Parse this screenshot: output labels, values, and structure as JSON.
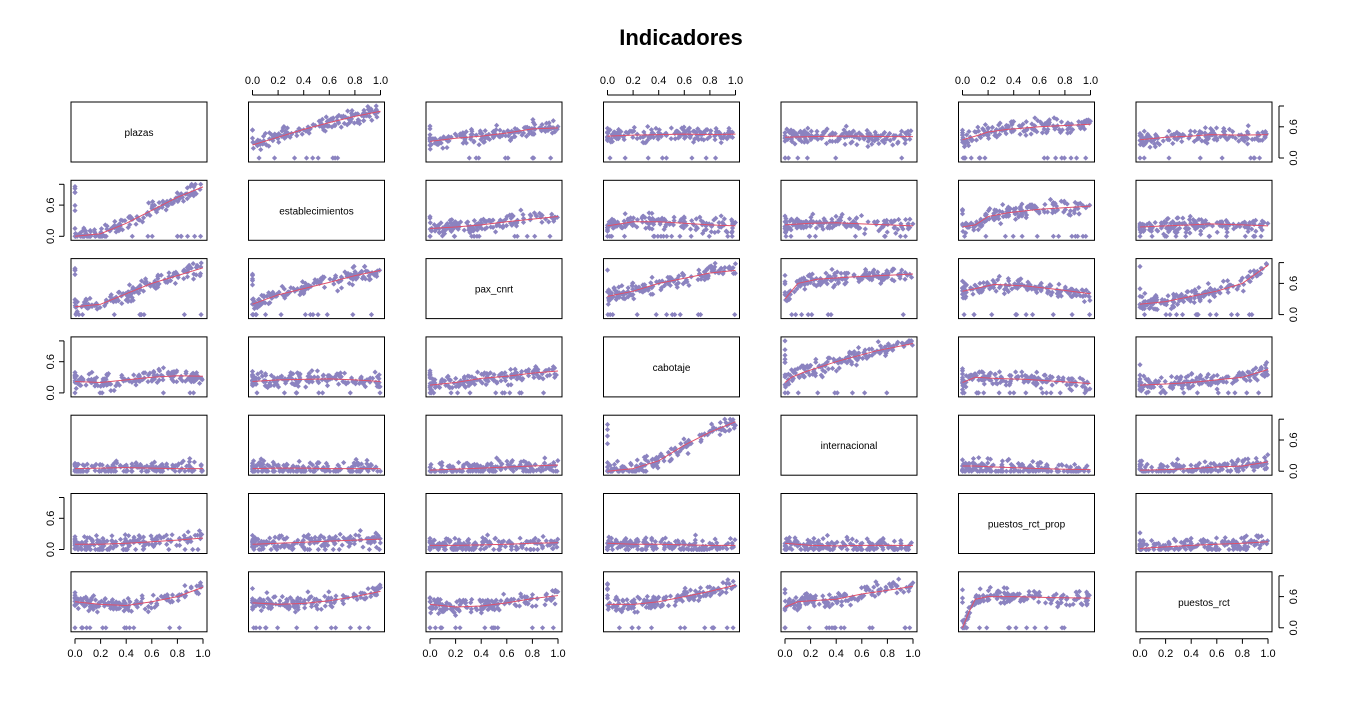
{
  "chart_data": {
    "type": "scatter",
    "subtype": "pairs-matrix",
    "title": "Indicadores",
    "variables": [
      "plazas",
      "establecimientos",
      "pax_cnrt",
      "cabotaje",
      "internacional",
      "puestos_rct_prop",
      "puestos_rct"
    ],
    "xlim": [
      0,
      1
    ],
    "ylim": [
      0,
      1
    ],
    "x_ticks": [
      "0.0",
      "0.2",
      "0.4",
      "0.6",
      "0.8",
      "1.0"
    ],
    "y_ticks": [
      "0.0",
      "0.6"
    ],
    "point_color": "#8B83C0",
    "smooth_color": "#E0506A",
    "top_axis_columns": [
      1,
      3,
      5
    ],
    "bottom_axis_columns": [
      0,
      2,
      4,
      6
    ],
    "left_axis_rows": [
      1,
      3,
      5
    ],
    "right_axis_rows": [
      0,
      2,
      4,
      6
    ],
    "smooth_lines": {
      "0-1": [
        [
          0,
          0.25
        ],
        [
          0.2,
          0.4
        ],
        [
          0.4,
          0.55
        ],
        [
          0.6,
          0.68
        ],
        [
          0.8,
          0.8
        ],
        [
          1,
          0.9
        ]
      ],
      "0-2": [
        [
          0,
          0.32
        ],
        [
          0.2,
          0.38
        ],
        [
          0.4,
          0.42
        ],
        [
          0.6,
          0.48
        ],
        [
          0.8,
          0.56
        ],
        [
          1,
          0.58
        ]
      ],
      "0-3": [
        [
          0,
          0.42
        ],
        [
          0.2,
          0.44
        ],
        [
          0.4,
          0.45
        ],
        [
          0.6,
          0.46
        ],
        [
          0.8,
          0.45
        ],
        [
          1,
          0.46
        ]
      ],
      "0-4": [
        [
          0,
          0.4
        ],
        [
          0.2,
          0.41
        ],
        [
          0.4,
          0.42
        ],
        [
          0.6,
          0.42
        ],
        [
          0.8,
          0.41
        ],
        [
          1,
          0.41
        ]
      ],
      "0-5": [
        [
          0,
          0.35
        ],
        [
          0.1,
          0.42
        ],
        [
          0.2,
          0.5
        ],
        [
          0.35,
          0.55
        ],
        [
          0.6,
          0.6
        ],
        [
          1,
          0.65
        ]
      ],
      "0-6": [
        [
          0,
          0.35
        ],
        [
          0.2,
          0.4
        ],
        [
          0.4,
          0.42
        ],
        [
          0.55,
          0.45
        ],
        [
          0.8,
          0.44
        ],
        [
          1,
          0.45
        ]
      ],
      "1-0": [
        [
          0,
          0.0
        ],
        [
          0.2,
          0.05
        ],
        [
          0.4,
          0.25
        ],
        [
          0.6,
          0.5
        ],
        [
          0.8,
          0.75
        ],
        [
          1,
          0.95
        ]
      ],
      "1-2": [
        [
          0,
          0.15
        ],
        [
          0.2,
          0.18
        ],
        [
          0.4,
          0.22
        ],
        [
          0.6,
          0.28
        ],
        [
          0.8,
          0.33
        ],
        [
          1,
          0.38
        ]
      ],
      "1-3": [
        [
          0,
          0.2
        ],
        [
          0.2,
          0.28
        ],
        [
          0.4,
          0.28
        ],
        [
          0.6,
          0.25
        ],
        [
          0.8,
          0.22
        ],
        [
          1,
          0.2
        ]
      ],
      "1-4": [
        [
          0,
          0.22
        ],
        [
          0.2,
          0.25
        ],
        [
          0.4,
          0.26
        ],
        [
          0.6,
          0.24
        ],
        [
          0.8,
          0.22
        ],
        [
          1,
          0.2
        ]
      ],
      "1-5": [
        [
          0,
          0.18
        ],
        [
          0.1,
          0.22
        ],
        [
          0.2,
          0.38
        ],
        [
          0.35,
          0.45
        ],
        [
          0.6,
          0.52
        ],
        [
          1,
          0.58
        ]
      ],
      "1-6": [
        [
          0,
          0.18
        ],
        [
          0.2,
          0.2
        ],
        [
          0.4,
          0.22
        ],
        [
          0.55,
          0.24
        ],
        [
          0.8,
          0.22
        ],
        [
          1,
          0.2
        ]
      ],
      "2-0": [
        [
          0,
          0.15
        ],
        [
          0.2,
          0.2
        ],
        [
          0.4,
          0.4
        ],
        [
          0.6,
          0.6
        ],
        [
          0.8,
          0.75
        ],
        [
          1,
          0.9
        ]
      ],
      "2-1": [
        [
          0,
          0.2
        ],
        [
          0.2,
          0.38
        ],
        [
          0.4,
          0.5
        ],
        [
          0.6,
          0.62
        ],
        [
          0.8,
          0.75
        ],
        [
          1,
          0.85
        ]
      ],
      "2-3": [
        [
          0,
          0.35
        ],
        [
          0.2,
          0.45
        ],
        [
          0.4,
          0.6
        ],
        [
          0.6,
          0.7
        ],
        [
          0.8,
          0.8
        ],
        [
          1,
          0.85
        ]
      ],
      "2-4": [
        [
          0,
          0.3
        ],
        [
          0.05,
          0.45
        ],
        [
          0.1,
          0.6
        ],
        [
          0.25,
          0.68
        ],
        [
          0.5,
          0.72
        ],
        [
          1,
          0.78
        ]
      ],
      "2-5": [
        [
          0,
          0.45
        ],
        [
          0.1,
          0.5
        ],
        [
          0.25,
          0.58
        ],
        [
          0.5,
          0.55
        ],
        [
          0.75,
          0.48
        ],
        [
          1,
          0.4
        ]
      ],
      "2-6": [
        [
          0,
          0.2
        ],
        [
          0.2,
          0.25
        ],
        [
          0.4,
          0.35
        ],
        [
          0.6,
          0.45
        ],
        [
          0.8,
          0.6
        ],
        [
          1,
          0.95
        ]
      ],
      "3-0": [
        [
          0,
          0.22
        ],
        [
          0.2,
          0.2
        ],
        [
          0.4,
          0.25
        ],
        [
          0.6,
          0.3
        ],
        [
          0.8,
          0.33
        ],
        [
          1,
          0.32
        ]
      ],
      "3-1": [
        [
          0,
          0.22
        ],
        [
          0.2,
          0.25
        ],
        [
          0.4,
          0.26
        ],
        [
          0.6,
          0.27
        ],
        [
          0.8,
          0.25
        ],
        [
          1,
          0.22
        ]
      ],
      "3-2": [
        [
          0,
          0.15
        ],
        [
          0.2,
          0.2
        ],
        [
          0.4,
          0.28
        ],
        [
          0.6,
          0.32
        ],
        [
          0.8,
          0.38
        ],
        [
          1,
          0.42
        ]
      ],
      "3-4": [
        [
          0,
          0.2
        ],
        [
          0.05,
          0.3
        ],
        [
          0.15,
          0.4
        ],
        [
          0.4,
          0.6
        ],
        [
          0.7,
          0.8
        ],
        [
          1,
          0.95
        ]
      ],
      "3-5": [
        [
          0,
          0.2
        ],
        [
          0.1,
          0.3
        ],
        [
          0.25,
          0.28
        ],
        [
          0.5,
          0.26
        ],
        [
          0.75,
          0.22
        ],
        [
          1,
          0.18
        ]
      ],
      "3-6": [
        [
          0,
          0.15
        ],
        [
          0.2,
          0.17
        ],
        [
          0.4,
          0.2
        ],
        [
          0.6,
          0.25
        ],
        [
          0.8,
          0.3
        ],
        [
          1,
          0.45
        ]
      ],
      "4-0": [
        [
          0,
          0.05
        ],
        [
          0.2,
          0.06
        ],
        [
          0.4,
          0.07
        ],
        [
          0.6,
          0.06
        ],
        [
          0.8,
          0.05
        ],
        [
          1,
          0.05
        ]
      ],
      "4-1": [
        [
          0,
          0.05
        ],
        [
          0.2,
          0.06
        ],
        [
          0.4,
          0.06
        ],
        [
          0.6,
          0.05
        ],
        [
          0.8,
          0.05
        ],
        [
          1,
          0.05
        ]
      ],
      "4-2": [
        [
          0,
          0.02
        ],
        [
          0.2,
          0.04
        ],
        [
          0.4,
          0.06
        ],
        [
          0.6,
          0.08
        ],
        [
          0.8,
          0.1
        ],
        [
          1,
          0.12
        ]
      ],
      "4-3": [
        [
          0,
          0.0
        ],
        [
          0.2,
          0.05
        ],
        [
          0.4,
          0.2
        ],
        [
          0.6,
          0.5
        ],
        [
          0.8,
          0.75
        ],
        [
          1,
          0.95
        ]
      ],
      "4-5": [
        [
          0,
          0.1
        ],
        [
          0.1,
          0.1
        ],
        [
          0.25,
          0.08
        ],
        [
          0.5,
          0.06
        ],
        [
          0.75,
          0.04
        ],
        [
          1,
          0.03
        ]
      ],
      "4-6": [
        [
          0,
          0.02
        ],
        [
          0.2,
          0.03
        ],
        [
          0.4,
          0.05
        ],
        [
          0.6,
          0.08
        ],
        [
          0.8,
          0.1
        ],
        [
          1,
          0.18
        ]
      ],
      "5-0": [
        [
          0,
          0.1
        ],
        [
          0.2,
          0.1
        ],
        [
          0.4,
          0.12
        ],
        [
          0.6,
          0.15
        ],
        [
          0.8,
          0.18
        ],
        [
          1,
          0.22
        ]
      ],
      "5-1": [
        [
          0,
          0.1
        ],
        [
          0.2,
          0.12
        ],
        [
          0.4,
          0.14
        ],
        [
          0.6,
          0.16
        ],
        [
          0.8,
          0.18
        ],
        [
          1,
          0.2
        ]
      ],
      "5-2": [
        [
          0,
          0.08
        ],
        [
          0.2,
          0.08
        ],
        [
          0.4,
          0.09
        ],
        [
          0.6,
          0.1
        ],
        [
          0.8,
          0.12
        ],
        [
          1,
          0.13
        ]
      ],
      "5-3": [
        [
          0,
          0.12
        ],
        [
          0.2,
          0.1
        ],
        [
          0.4,
          0.1
        ],
        [
          0.6,
          0.09
        ],
        [
          0.8,
          0.08
        ],
        [
          1,
          0.08
        ]
      ],
      "5-4": [
        [
          0,
          0.12
        ],
        [
          0.2,
          0.08
        ],
        [
          0.4,
          0.07
        ],
        [
          0.6,
          0.08
        ],
        [
          0.8,
          0.08
        ],
        [
          1,
          0.08
        ]
      ],
      "5-6": [
        [
          0,
          0.02
        ],
        [
          0.2,
          0.05
        ],
        [
          0.4,
          0.08
        ],
        [
          0.6,
          0.1
        ],
        [
          0.8,
          0.12
        ],
        [
          1,
          0.15
        ]
      ],
      "6-0": [
        [
          0,
          0.5
        ],
        [
          0.2,
          0.45
        ],
        [
          0.4,
          0.43
        ],
        [
          0.6,
          0.5
        ],
        [
          0.8,
          0.6
        ],
        [
          1,
          0.78
        ]
      ],
      "6-1": [
        [
          0,
          0.48
        ],
        [
          0.2,
          0.45
        ],
        [
          0.4,
          0.47
        ],
        [
          0.6,
          0.52
        ],
        [
          0.8,
          0.6
        ],
        [
          1,
          0.7
        ]
      ],
      "6-2": [
        [
          0,
          0.45
        ],
        [
          0.2,
          0.4
        ],
        [
          0.4,
          0.42
        ],
        [
          0.6,
          0.48
        ],
        [
          0.8,
          0.56
        ],
        [
          1,
          0.62
        ]
      ],
      "6-3": [
        [
          0,
          0.45
        ],
        [
          0.2,
          0.45
        ],
        [
          0.4,
          0.5
        ],
        [
          0.6,
          0.6
        ],
        [
          0.8,
          0.7
        ],
        [
          1,
          0.82
        ]
      ],
      "6-4": [
        [
          0,
          0.4
        ],
        [
          0.1,
          0.5
        ],
        [
          0.2,
          0.52
        ],
        [
          0.4,
          0.55
        ],
        [
          0.6,
          0.65
        ],
        [
          0.8,
          0.72
        ],
        [
          1,
          0.8
        ]
      ],
      "6-5": [
        [
          0,
          0.0
        ],
        [
          0.05,
          0.3
        ],
        [
          0.1,
          0.55
        ],
        [
          0.2,
          0.6
        ],
        [
          0.4,
          0.6
        ],
        [
          0.7,
          0.58
        ],
        [
          1,
          0.57
        ]
      ]
    }
  }
}
